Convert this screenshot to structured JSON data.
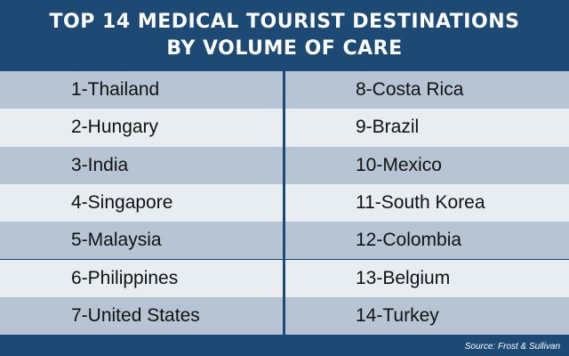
{
  "title": {
    "line1": "TOP 14 MEDICAL TOURIST DESTINATIONS",
    "line2": "BY VOLUME OF CARE"
  },
  "destinations": {
    "left": [
      "1-Thailand",
      "2-Hungary",
      "3-India",
      "4-Singapore",
      "5-Malaysia",
      "6-Philippines",
      "7-United States"
    ],
    "right": [
      "8-Costa Rica",
      "9-Brazil",
      "10-Mexico",
      "11-South Korea",
      "12-Colombia",
      "13-Belgium",
      "14-Turkey"
    ]
  },
  "source": "Source: Frost & Sullivan",
  "colors": {
    "header_bg": "#1c4a74",
    "row_dark": "#b7c4d4",
    "row_light": "#e8edf2",
    "text": "#111111"
  }
}
